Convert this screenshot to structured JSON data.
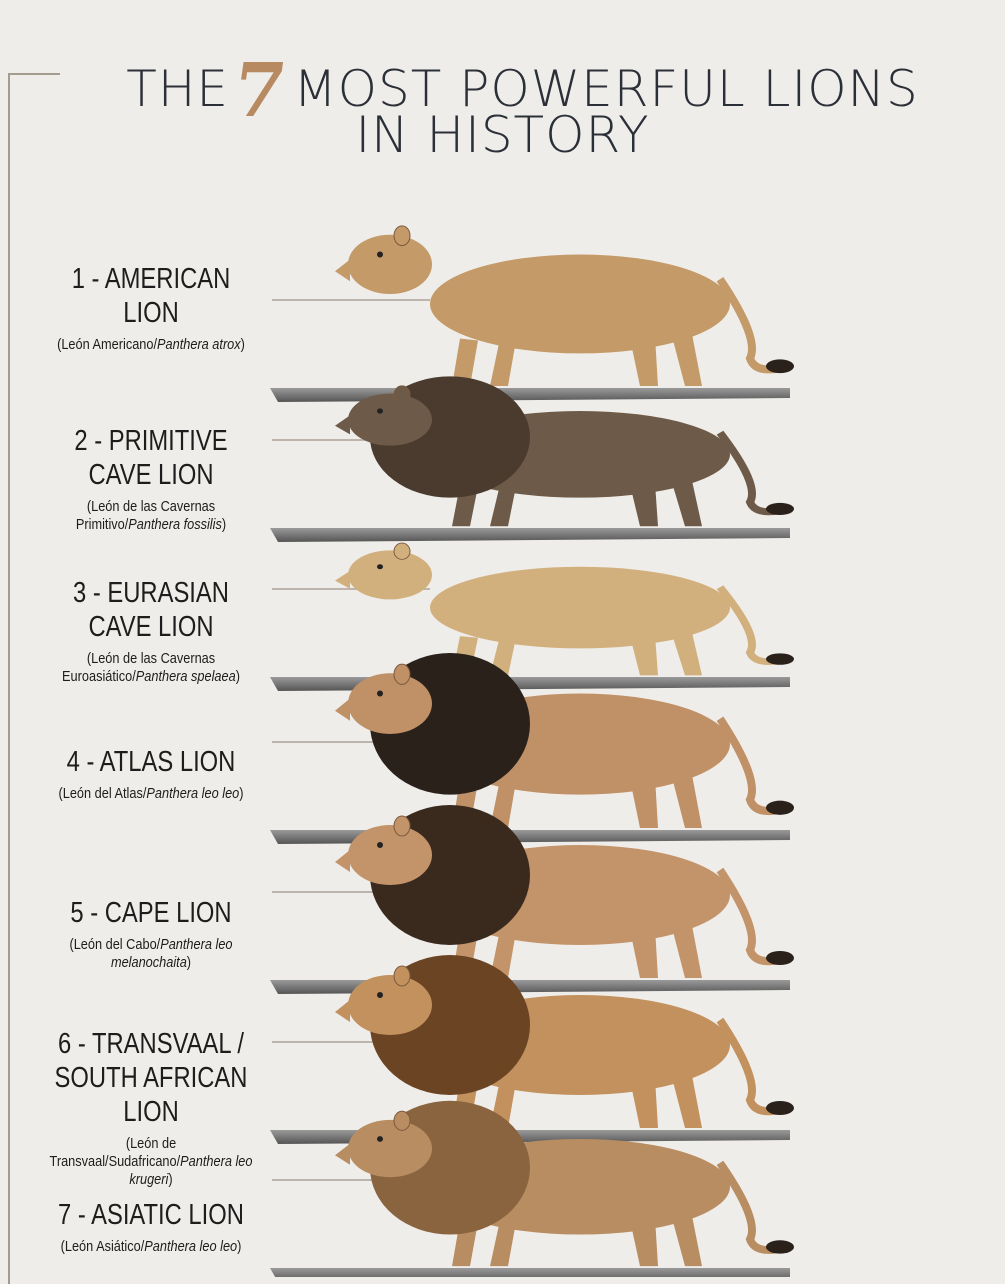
{
  "title": {
    "before": "THE",
    "number": "7",
    "after": "MOST POWERFUL LIONS",
    "line2": "IN HISTORY"
  },
  "colors": {
    "accent": "#b88a62",
    "text": "#2b2f38",
    "shelf": "#7b7b7b",
    "background": "#efede9"
  },
  "lions": [
    {
      "name": "1 - AMERICAN LION",
      "common": "(León Americano/",
      "scientific": "Panthera atrox",
      "close": ")",
      "coat": "#c39a68",
      "mane": null
    },
    {
      "name": "2 - PRIMITIVE CAVE LION",
      "common": "(León de las Cavernas Primitivo/",
      "scientific": "Panthera fossilis",
      "close": ")",
      "coat": "#6e5a48",
      "mane": "#4a3b2e"
    },
    {
      "name": "3 - EURASIAN CAVE LION",
      "common": "(León de las Cavernas Euroasiático/",
      "scientific": "Panthera spelaea",
      "close": ")",
      "coat": "#d2b07e",
      "mane": null
    },
    {
      "name": "4 - ATLAS LION",
      "common": "(León del Atlas/",
      "scientific": "Panthera leo leo",
      "close": ")",
      "coat": "#c09066",
      "mane": "#2a211b"
    },
    {
      "name": "5 - CAPE LION",
      "common": "(León del Cabo/",
      "scientific": "Panthera leo melanochaita",
      "close": ")",
      "coat": "#c3946a",
      "mane": "#3a2a1e"
    },
    {
      "name": "6 - TRANSVAAL / SOUTH AFRICAN LION",
      "common": "(León de Transvaal/Sudafricano/",
      "scientific": "Panthera leo krugeri",
      "close": ")",
      "coat": "#c2915e",
      "mane": "#6b4424"
    },
    {
      "name": "7 - ASIATIC LION",
      "common": "(León Asiático/",
      "scientific": "Panthera leo leo",
      "close": ")",
      "coat": "#b98d62",
      "mane": "#8a643f"
    }
  ]
}
